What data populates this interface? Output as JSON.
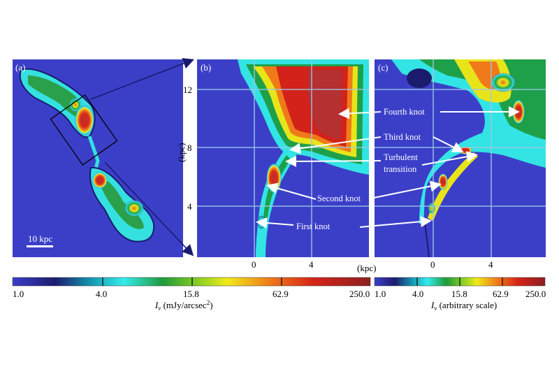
{
  "panels": {
    "a": {
      "tag": "(a)",
      "scalebar_label": "10 kpc"
    },
    "b": {
      "tag": "(b)"
    },
    "c": {
      "tag": "(c)"
    }
  },
  "axes": {
    "y_unit": "(kpc)",
    "x_unit": "(kpc)",
    "y_ticks": [
      "12",
      "8",
      "4"
    ],
    "x_ticks_b": [
      "0",
      "4"
    ],
    "x_ticks_c": [
      "0",
      "4"
    ]
  },
  "annotations": {
    "fourth_knot": "Fourth knot",
    "third_knot": "Third knot",
    "turbulent_1": "Turbulent",
    "turbulent_2": "transition",
    "second_knot": "Second knot",
    "first_knot": "First knot"
  },
  "colorbars": {
    "main": {
      "ticks": [
        "1.0",
        "4.0",
        "15.8",
        "62.9",
        "250.0"
      ],
      "label_main": "I",
      "label_sub": "ν",
      "label_rest": " (mJy/arcsec",
      "label_sup": "2",
      "label_end": ")"
    },
    "secondary": {
      "ticks": [
        "1.0",
        "4.0",
        "15.8",
        "62.9",
        "250.0"
      ],
      "label_main": "I",
      "label_sub": "ν",
      "label_rest": " (arbitrary scale)"
    }
  },
  "colors": {
    "background": "#3b3fc8",
    "colormap": [
      "#3b3fc8",
      "#1c1c78",
      "#1aa6b8",
      "#33e8e8",
      "#1fa83a",
      "#e8e61a",
      "#f0741a",
      "#d1201a",
      "#8a1a1a"
    ],
    "grid": "#9cc8e8"
  }
}
